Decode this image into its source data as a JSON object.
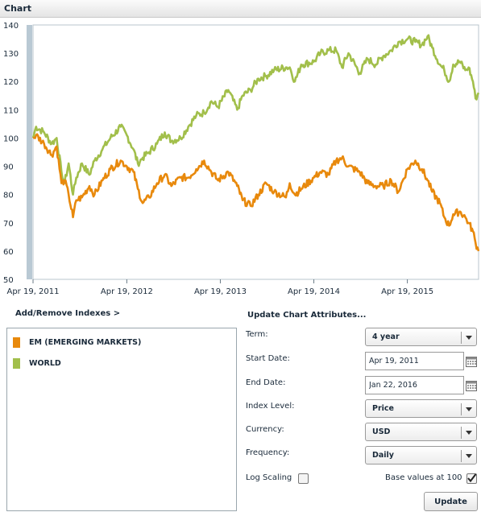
{
  "header": {
    "title": "Chart"
  },
  "chart_data": {
    "type": "line",
    "title": "",
    "xlabel": "",
    "ylabel": "",
    "x_range": [
      "2011-04-19",
      "2016-01-22"
    ],
    "ylim": [
      50,
      140
    ],
    "yticks": [
      50,
      60,
      70,
      80,
      90,
      100,
      110,
      120,
      130,
      140
    ],
    "xtick_labels": [
      "Apr 19, 2011",
      "Apr 19, 2012",
      "Apr 19, 2013",
      "Apr 19, 2014",
      "Apr 19, 2015"
    ],
    "grid": false,
    "series": [
      {
        "name": "WORLD",
        "color": "#a2bf4b",
        "x": [
          "2011-04-19",
          "2011-05-01",
          "2011-06-01",
          "2011-07-01",
          "2011-07-20",
          "2011-08-08",
          "2011-08-20",
          "2011-09-05",
          "2011-09-22",
          "2011-10-05",
          "2011-10-27",
          "2011-11-25",
          "2011-12-15",
          "2012-01-15",
          "2012-02-15",
          "2012-03-26",
          "2012-04-19",
          "2012-05-15",
          "2012-06-01",
          "2012-06-20",
          "2012-07-15",
          "2012-08-15",
          "2012-09-14",
          "2012-10-10",
          "2012-11-15",
          "2012-12-15",
          "2013-01-15",
          "2013-02-15",
          "2013-03-15",
          "2013-04-10",
          "2013-05-20",
          "2013-06-24",
          "2013-07-15",
          "2013-08-15",
          "2013-09-15",
          "2013-10-15",
          "2013-11-15",
          "2013-12-31",
          "2014-01-15",
          "2014-02-04",
          "2014-03-01",
          "2014-04-19",
          "2014-05-15",
          "2014-06-15",
          "2014-07-15",
          "2014-08-07",
          "2014-09-01",
          "2014-10-15",
          "2014-11-15",
          "2014-12-16",
          "2015-01-15",
          "2015-02-15",
          "2015-03-15",
          "2015-04-19",
          "2015-05-20",
          "2015-06-15",
          "2015-07-07",
          "2015-07-25",
          "2015-08-24",
          "2015-09-10",
          "2015-09-29",
          "2015-10-15",
          "2015-11-10",
          "2015-12-01",
          "2015-12-14",
          "2015-12-31",
          "2016-01-10",
          "2016-01-22"
        ],
        "values": [
          100,
          104,
          102,
          98,
          100,
          88,
          84,
          91,
          80,
          86,
          91,
          87,
          92,
          96,
          100,
          104,
          101,
          96,
          91,
          93,
          95,
          98,
          102,
          99,
          100,
          104,
          108,
          109,
          113,
          111,
          117,
          110,
          115,
          117,
          121,
          122,
          124,
          125,
          125,
          120,
          126,
          127,
          130,
          131,
          131,
          125,
          130,
          123,
          128,
          126,
          129,
          131,
          134,
          135,
          134,
          133,
          136,
          132,
          126,
          124,
          120,
          126,
          127,
          124,
          125,
          120,
          114,
          116
        ]
      },
      {
        "name": "EM (EMERGING MARKETS)",
        "color": "#e8890c",
        "x": [
          "2011-04-19",
          "2011-05-01",
          "2011-06-01",
          "2011-07-01",
          "2011-07-20",
          "2011-08-08",
          "2011-08-20",
          "2011-09-05",
          "2011-09-22",
          "2011-10-05",
          "2011-10-27",
          "2011-11-25",
          "2011-12-15",
          "2012-01-15",
          "2012-02-15",
          "2012-03-26",
          "2012-04-19",
          "2012-05-15",
          "2012-06-01",
          "2012-06-20",
          "2012-07-15",
          "2012-08-15",
          "2012-09-14",
          "2012-10-10",
          "2012-11-15",
          "2012-12-15",
          "2013-01-15",
          "2013-02-15",
          "2013-03-15",
          "2013-04-10",
          "2013-05-20",
          "2013-06-24",
          "2013-07-15",
          "2013-08-15",
          "2013-09-15",
          "2013-10-15",
          "2013-11-15",
          "2013-12-31",
          "2014-01-15",
          "2014-02-04",
          "2014-03-01",
          "2014-04-19",
          "2014-05-15",
          "2014-06-15",
          "2014-07-15",
          "2014-08-07",
          "2014-09-01",
          "2014-10-15",
          "2014-11-15",
          "2014-12-16",
          "2015-01-15",
          "2015-02-15",
          "2015-03-15",
          "2015-04-19",
          "2015-05-20",
          "2015-06-15",
          "2015-07-07",
          "2015-07-25",
          "2015-08-24",
          "2015-09-10",
          "2015-09-29",
          "2015-10-15",
          "2015-11-10",
          "2015-12-01",
          "2015-12-14",
          "2015-12-31",
          "2016-01-10",
          "2016-01-22"
        ],
        "values": [
          100,
          101,
          98,
          94,
          97,
          84,
          85,
          80,
          72,
          78,
          79,
          83,
          80,
          85,
          89,
          92,
          90,
          88,
          82,
          77,
          79,
          84,
          87,
          83,
          86,
          86,
          89,
          92,
          88,
          85,
          88,
          83,
          78,
          76,
          80,
          84,
          81,
          79,
          84,
          80,
          82,
          86,
          88,
          87,
          92,
          93,
          90,
          88,
          84,
          83,
          83,
          85,
          81,
          89,
          92,
          89,
          85,
          81,
          77,
          72,
          69,
          73,
          74,
          72,
          70,
          67,
          63,
          60
        ]
      }
    ]
  },
  "indexes": {
    "link_label": "Add/Remove Indexes >",
    "items": [
      {
        "label": "EM (EMERGING MARKETS)",
        "color": "#e8890c"
      },
      {
        "label": "WORLD",
        "color": "#a2bf4b"
      }
    ]
  },
  "attributes": {
    "title": "Update Chart Attributes...",
    "term": {
      "label": "Term:",
      "value": "4 year"
    },
    "start_date": {
      "label": "Start Date:",
      "value": "Apr 19, 2011"
    },
    "end_date": {
      "label": "End Date:",
      "value": "Jan 22, 2016"
    },
    "index_level": {
      "label": "Index Level:",
      "value": "Price"
    },
    "currency": {
      "label": "Currency:",
      "value": "USD"
    },
    "frequency": {
      "label": "Frequency:",
      "value": "Daily"
    },
    "log_scaling": {
      "label": "Log Scaling",
      "checked": false
    },
    "base_values": {
      "label": "Base values at 100",
      "checked": true
    },
    "update_button": "Update"
  },
  "icons": {
    "calendar": "calendar-icon",
    "dropdown": "chevron-down-icon",
    "checkmark": "checkmark-icon"
  }
}
